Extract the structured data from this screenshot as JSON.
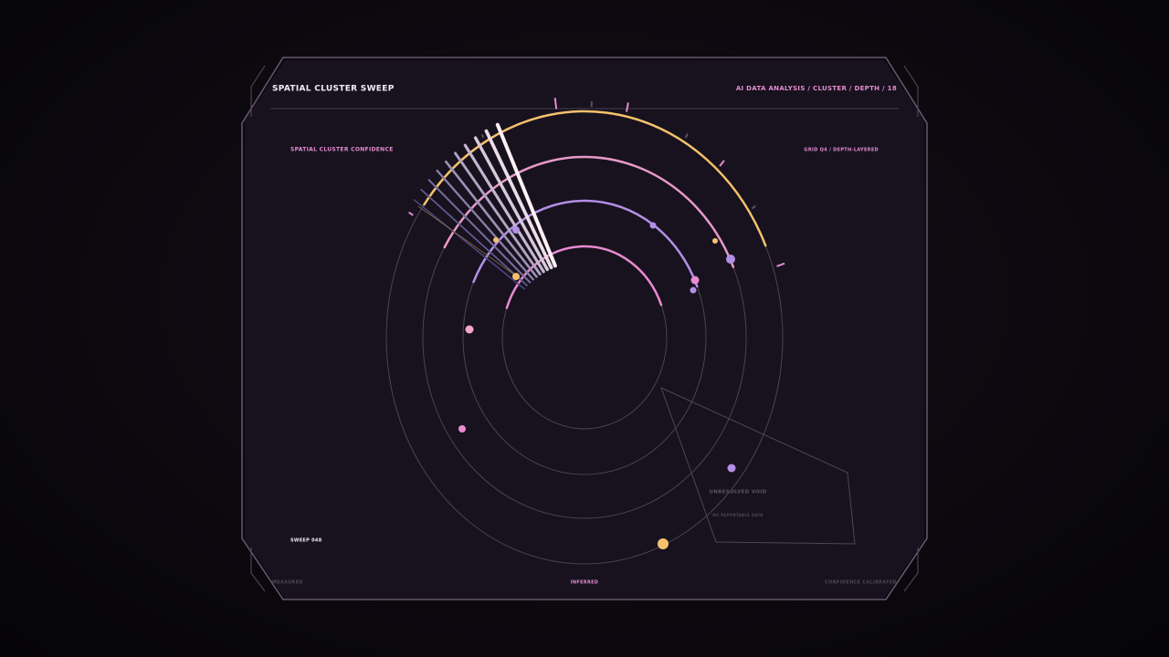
{
  "header": {
    "title": "SPATIAL CLUSTER SWEEP",
    "breadcrumb": "AI DATA ANALYSIS / CLUSTER / DEPTH / 18"
  },
  "panel": {
    "left_label": "SPATIAL CLUSTER CONFIDENCE",
    "right_label": "GRID Q4 / DEPTH-LAYERED",
    "sweep": "SWEEP 048"
  },
  "void": {
    "title": "UNRESOLVED VOID",
    "note": "NO REPORTABLE DATA"
  },
  "footer": {
    "left": "MEASURED",
    "center": "INFERRED",
    "right": "CONFIDENCE CALIBRATED"
  }
}
